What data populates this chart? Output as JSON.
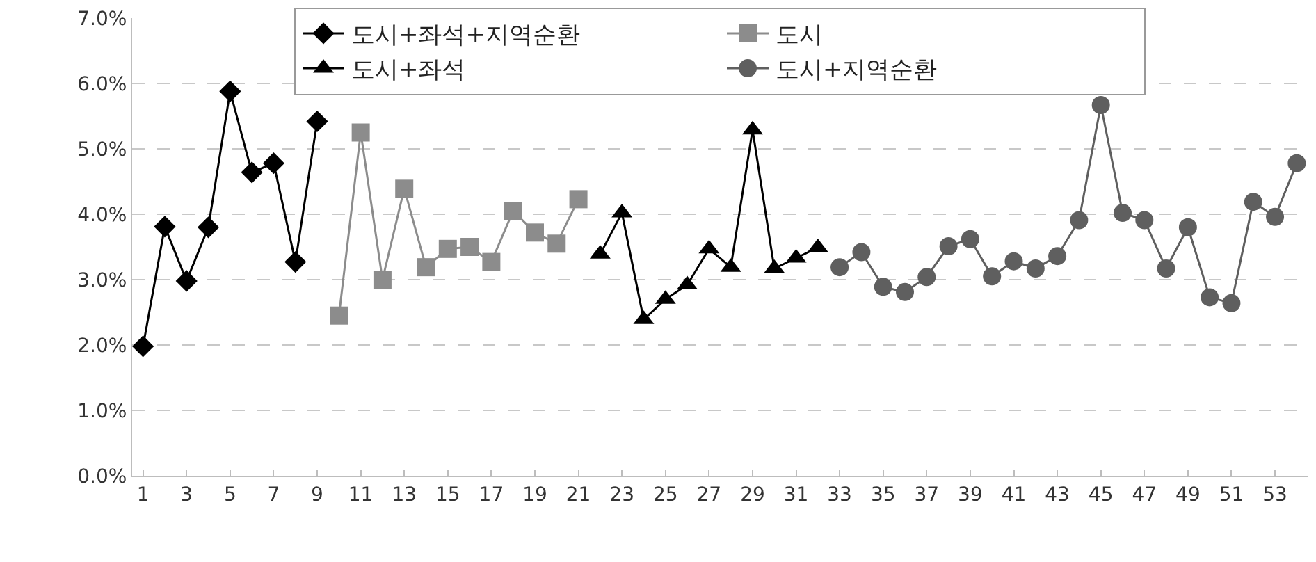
{
  "chart_data": {
    "type": "line",
    "ylim": [
      0,
      7
    ],
    "yticks": [
      {
        "value": 0,
        "label": "0.0%"
      },
      {
        "value": 1,
        "label": "1.0%"
      },
      {
        "value": 2,
        "label": "2.0%"
      },
      {
        "value": 3,
        "label": "3.0%"
      },
      {
        "value": 4,
        "label": "4.0%"
      },
      {
        "value": 5,
        "label": "5.0%"
      },
      {
        "value": 6,
        "label": "6.0%"
      },
      {
        "value": 7,
        "label": "7.0%"
      }
    ],
    "xlim": [
      0.5,
      54.5
    ],
    "xticks": [
      1,
      3,
      5,
      7,
      9,
      11,
      13,
      15,
      17,
      19,
      21,
      23,
      25,
      27,
      29,
      31,
      33,
      35,
      37,
      39,
      41,
      43,
      45,
      47,
      49,
      51,
      53
    ],
    "grid": "y",
    "legend": "top",
    "line_style": "solid",
    "series": [
      {
        "name": "도시+좌석+지역순환",
        "color": "#000000",
        "marker": "diamond",
        "x": [
          1,
          2,
          3,
          4,
          5,
          6,
          7,
          8,
          9
        ],
        "values": [
          1.98,
          3.81,
          2.98,
          3.8,
          5.88,
          4.64,
          4.78,
          3.27,
          5.42
        ]
      },
      {
        "name": "도시",
        "color": "#8c8c8c",
        "marker": "square",
        "x": [
          10,
          11,
          12,
          13,
          14,
          15,
          16,
          17,
          18,
          19,
          20,
          21
        ],
        "values": [
          2.45,
          5.25,
          3.0,
          4.39,
          3.19,
          3.47,
          3.5,
          3.27,
          4.05,
          3.72,
          3.55,
          4.23
        ]
      },
      {
        "name": "도시+좌석",
        "color": "#000000",
        "marker": "triangle",
        "x": [
          22,
          23,
          24,
          25,
          26,
          27,
          28,
          29,
          30,
          31,
          32
        ],
        "values": [
          3.39,
          4.02,
          2.39,
          2.7,
          2.92,
          3.47,
          3.19,
          5.29,
          3.17,
          3.33,
          3.49
        ]
      },
      {
        "name": "도시+지역순환",
        "color": "#5f5f5f",
        "marker": "circle",
        "x": [
          33,
          34,
          35,
          36,
          37,
          38,
          39,
          40,
          41,
          42,
          43,
          44,
          45,
          46,
          47,
          48,
          49,
          50,
          51,
          52,
          53,
          54
        ],
        "values": [
          3.19,
          3.42,
          2.89,
          2.81,
          3.04,
          3.51,
          3.62,
          3.05,
          3.28,
          3.17,
          3.36,
          3.91,
          5.67,
          4.02,
          3.91,
          3.17,
          3.8,
          2.73,
          2.64,
          4.19,
          3.96,
          4.78
        ]
      }
    ]
  }
}
